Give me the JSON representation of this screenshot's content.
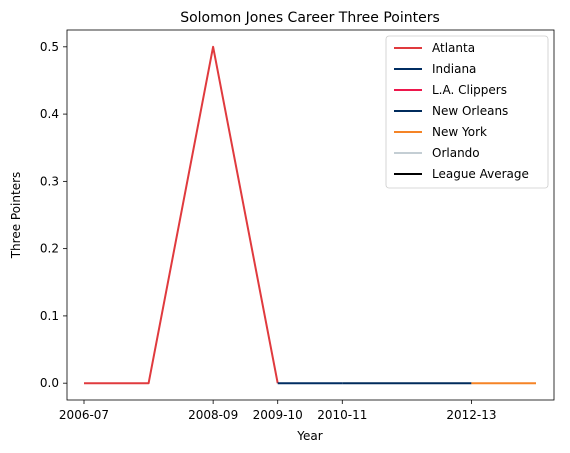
{
  "chart_data": {
    "type": "line",
    "title": "Solomon Jones  Career Three Pointers",
    "xlabel": "Year",
    "ylabel": "Three Pointers",
    "x": [
      "2006-07",
      "2007-08",
      "2008-09",
      "2009-10",
      "2010-11",
      "2011-12",
      "2012-13",
      "2013-14"
    ],
    "x_tick_labels": [
      "2006-07",
      "2008-09",
      "2009-10",
      "2010-11",
      "2012-13"
    ],
    "ylim": [
      -0.025,
      0.525
    ],
    "y_ticks": [
      "0.0",
      "0.1",
      "0.2",
      "0.3",
      "0.4",
      "0.5"
    ],
    "series": [
      {
        "name": "Atlanta",
        "color": "#e03a3e",
        "x": [
          "2006-07",
          "2007-08",
          "2008-09",
          "2009-10"
        ],
        "values": [
          0.0,
          0.0,
          0.5,
          0.0
        ]
      },
      {
        "name": "Indiana",
        "color": "#002d62",
        "x": [
          "2009-10",
          "2010-11"
        ],
        "values": [
          0.0,
          0.0
        ]
      },
      {
        "name": "L.A. Clippers",
        "color": "#ed174c",
        "x": [],
        "values": []
      },
      {
        "name": "New Orleans",
        "color": "#002b5c",
        "x": [
          "2010-11",
          "2011-12",
          "2012-13"
        ],
        "values": [
          0.0,
          0.0,
          0.0
        ]
      },
      {
        "name": "New York",
        "color": "#f58426",
        "x": [
          "2012-13",
          "2013-14"
        ],
        "values": [
          0.0,
          0.0
        ]
      },
      {
        "name": "Orlando",
        "color": "#c4ced4",
        "x": [],
        "values": []
      },
      {
        "name": "League Average",
        "color": "#000000",
        "x": [],
        "values": []
      }
    ],
    "legend_position": "top-right",
    "grid": false
  }
}
